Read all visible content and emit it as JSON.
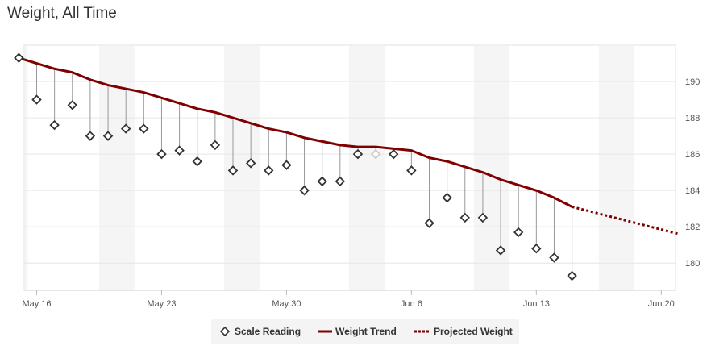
{
  "title": "Weight, All Time",
  "chart_data": {
    "type": "line",
    "x_ticks": [
      "May 16",
      "May 23",
      "May 30",
      "Jun 6",
      "Jun 13",
      "Jun 20"
    ],
    "y_ticks": [
      180,
      182,
      184,
      186,
      188,
      190
    ],
    "xlim": [
      "May 15.3",
      "Jun 20.8"
    ],
    "ylim": [
      178.5,
      192
    ],
    "legend_position": "bottom",
    "grid": "horizontal",
    "series": [
      {
        "name": "Scale Reading",
        "marker": "diamond",
        "color": "#333333",
        "x": [
          "May 15",
          "May 16",
          "May 17",
          "May 18",
          "May 19",
          "May 20",
          "May 21",
          "May 22",
          "May 23",
          "May 24",
          "May 25",
          "May 26",
          "May 27",
          "May 28",
          "May 29",
          "May 30",
          "May 31",
          "Jun 1",
          "Jun 2",
          "Jun 3",
          "Jun 4",
          "Jun 5",
          "Jun 6",
          "Jun 7",
          "Jun 8",
          "Jun 9",
          "Jun 10",
          "Jun 11",
          "Jun 12",
          "Jun 13",
          "Jun 14",
          "Jun 15"
        ],
        "values": [
          191.3,
          189.0,
          187.6,
          188.7,
          187.0,
          187.0,
          187.4,
          187.4,
          186.0,
          186.2,
          185.6,
          186.5,
          185.1,
          185.5,
          185.1,
          185.4,
          184.0,
          184.5,
          184.5,
          186.0,
          186.0,
          186.0,
          185.1,
          182.2,
          183.6,
          182.5,
          182.5,
          180.7,
          181.7,
          180.8,
          180.3,
          179.3
        ]
      },
      {
        "name": "Weight Trend",
        "color": "#800000",
        "x": [
          "May 15",
          "May 16",
          "May 17",
          "May 18",
          "May 19",
          "May 20",
          "May 21",
          "May 22",
          "May 23",
          "May 24",
          "May 25",
          "May 26",
          "May 27",
          "May 28",
          "May 29",
          "May 30",
          "May 31",
          "Jun 1",
          "Jun 2",
          "Jun 3",
          "Jun 4",
          "Jun 5",
          "Jun 6",
          "Jun 7",
          "Jun 8",
          "Jun 9",
          "Jun 10",
          "Jun 11",
          "Jun 12",
          "Jun 13",
          "Jun 14",
          "Jun 15"
        ],
        "values": [
          191.3,
          191.0,
          190.7,
          190.5,
          190.1,
          189.8,
          189.6,
          189.4,
          189.1,
          188.8,
          188.5,
          188.3,
          188.0,
          187.7,
          187.4,
          187.2,
          186.9,
          186.7,
          186.5,
          186.4,
          186.4,
          186.3,
          186.2,
          185.8,
          185.6,
          185.3,
          185.0,
          184.6,
          184.3,
          184.0,
          183.6,
          183.1
        ]
      },
      {
        "name": "Projected Weight",
        "color": "#800000",
        "style": "dotted",
        "x": [
          "Jun 15",
          "Jun 21"
        ],
        "values": [
          183.1,
          181.6
        ]
      }
    ],
    "missing_marker": {
      "x": "Jun 4",
      "value": 186.0,
      "note": "hollow light marker"
    },
    "weekend_bands": [
      [
        "May 20",
        "May 21"
      ],
      [
        "May 27",
        "May 28"
      ],
      [
        "Jun 3",
        "Jun 4"
      ],
      [
        "Jun 10",
        "Jun 11"
      ],
      [
        "Jun 17",
        "Jun 18"
      ]
    ]
  },
  "colors": {
    "trend": "#800000",
    "marker": "#333333",
    "band": "#f5f5f5",
    "grid": "#e6e6e6"
  }
}
